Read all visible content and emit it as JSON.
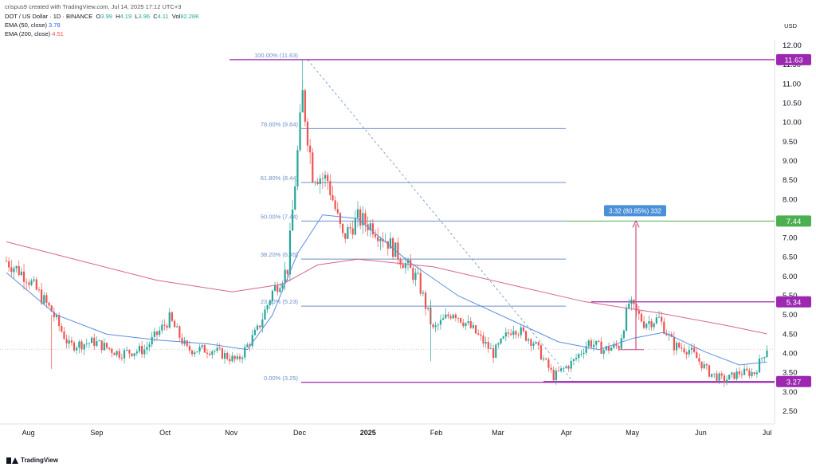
{
  "header": {
    "credit": "crispus9 created with TradingView.com, Jul 14, 2025 17:12 UTC+3",
    "symbol_line": "DOT / US Dollar · 1D · BINANCE",
    "ohlc": {
      "o_label": "O",
      "o": "3.99",
      "h_label": "H",
      "h": "4.19",
      "l_label": "L",
      "l": "3.96",
      "c_label": "C",
      "c": "4.11",
      "vol_label": "Vol",
      "vol": "82.28K"
    },
    "ema50": {
      "label": "EMA (50, close)",
      "value": "3.78"
    },
    "ema200": {
      "label": "EMA (200, close)",
      "value": "4.51"
    },
    "unit": "USD"
  },
  "brand": "TradingView",
  "colors": {
    "up": "#26a69a",
    "down": "#ef5350",
    "ema50": "#5b8de0",
    "ema200": "#d9658a",
    "fib": "#6c8ec9",
    "purple": "#9c27b0",
    "green": "#4caf50",
    "measure": "#d04f85",
    "badge": "#4a90d9"
  },
  "chart_data": {
    "type": "candlestick",
    "title": "DOT / US Dollar · 1D · BINANCE",
    "xlabel": "",
    "ylabel": "USD",
    "ylim": [
      2.0,
      12.3
    ],
    "x_ticks": [
      "Aug",
      "Sep",
      "Oct",
      "Nov",
      "Dec",
      "2025",
      "Feb",
      "Mar",
      "Apr",
      "May",
      "Jun",
      "Jul"
    ],
    "y_ticks": [
      "12.00",
      "11.50",
      "11.00",
      "10.50",
      "10.00",
      "9.50",
      "9.00",
      "8.50",
      "8.00",
      "7.50",
      "7.00",
      "6.50",
      "6.00",
      "5.50",
      "5.00",
      "4.50",
      "4.00",
      "3.50",
      "3.00",
      "2.50"
    ],
    "close_path": [
      [
        0,
        6.4
      ],
      [
        8,
        6.0
      ],
      [
        18,
        5.1
      ],
      [
        25,
        4.2
      ],
      [
        35,
        4.3
      ],
      [
        45,
        4.0
      ],
      [
        55,
        4.1
      ],
      [
        65,
        4.9
      ],
      [
        72,
        4.1
      ],
      [
        82,
        4.1
      ],
      [
        92,
        3.8
      ],
      [
        100,
        4.6
      ],
      [
        106,
        5.6
      ],
      [
        112,
        6.2
      ],
      [
        118,
        10.7
      ],
      [
        122,
        8.7
      ],
      [
        128,
        8.5
      ],
      [
        134,
        7.0
      ],
      [
        140,
        7.5
      ],
      [
        146,
        7.3
      ],
      [
        152,
        6.9
      ],
      [
        158,
        6.4
      ],
      [
        164,
        5.9
      ],
      [
        170,
        4.6
      ],
      [
        178,
        5.1
      ],
      [
        186,
        4.6
      ],
      [
        194,
        4.0
      ],
      [
        202,
        4.7
      ],
      [
        210,
        4.3
      ],
      [
        218,
        3.4
      ],
      [
        226,
        3.8
      ],
      [
        232,
        4.3
      ],
      [
        238,
        4.1
      ],
      [
        244,
        4.2
      ],
      [
        248,
        5.3
      ],
      [
        254,
        4.8
      ],
      [
        260,
        4.9
      ],
      [
        266,
        4.2
      ],
      [
        272,
        4.1
      ],
      [
        280,
        3.5
      ],
      [
        286,
        3.3
      ],
      [
        292,
        3.5
      ],
      [
        298,
        3.5
      ],
      [
        303,
        4.15
      ]
    ],
    "series": [
      {
        "name": "EMA (50, close)",
        "points": [
          [
            0,
            6.1
          ],
          [
            20,
            5.0
          ],
          [
            40,
            4.5
          ],
          [
            60,
            4.35
          ],
          [
            80,
            4.25
          ],
          [
            96,
            4.1
          ],
          [
            106,
            5.0
          ],
          [
            116,
            6.6
          ],
          [
            126,
            7.6
          ],
          [
            140,
            7.5
          ],
          [
            160,
            6.4
          ],
          [
            180,
            5.5
          ],
          [
            200,
            4.9
          ],
          [
            220,
            4.3
          ],
          [
            236,
            4.1
          ],
          [
            250,
            4.4
          ],
          [
            262,
            4.55
          ],
          [
            278,
            4.05
          ],
          [
            292,
            3.7
          ],
          [
            303,
            3.78
          ]
        ]
      },
      {
        "name": "EMA (200, close)",
        "points": [
          [
            0,
            6.9
          ],
          [
            30,
            6.4
          ],
          [
            60,
            5.9
          ],
          [
            90,
            5.6
          ],
          [
            110,
            5.8
          ],
          [
            124,
            6.3
          ],
          [
            140,
            6.45
          ],
          [
            170,
            6.25
          ],
          [
            200,
            5.8
          ],
          [
            230,
            5.35
          ],
          [
            260,
            5.05
          ],
          [
            285,
            4.75
          ],
          [
            303,
            4.51
          ]
        ]
      }
    ],
    "fibonacci": [
      {
        "label": "100.00% (11.63)",
        "value": 11.63
      },
      {
        "label": "78.60% (9.84)",
        "value": 9.84
      },
      {
        "label": "61.80% (8.44)",
        "value": 8.44
      },
      {
        "label": "50.00% (7.44)",
        "value": 7.44
      },
      {
        "label": "38.20% (6.45)",
        "value": 6.45
      },
      {
        "label": "23.60% (5.23)",
        "value": 5.23
      },
      {
        "label": "0.00% (3.25)",
        "value": 3.25
      }
    ],
    "price_labels": [
      {
        "value": 11.63,
        "text": "11.63",
        "color": "#9c27b0"
      },
      {
        "value": 7.44,
        "text": "7.44",
        "color": "#4caf50"
      },
      {
        "value": 5.34,
        "text": "5.34",
        "color": "#9c27b0"
      },
      {
        "value": 3.27,
        "text": "3.27",
        "color": "#9c27b0"
      }
    ],
    "annotations": [
      {
        "type": "measure",
        "text": "3.32 (80.85%) 332",
        "from": 4.1,
        "to": 7.44
      }
    ]
  }
}
